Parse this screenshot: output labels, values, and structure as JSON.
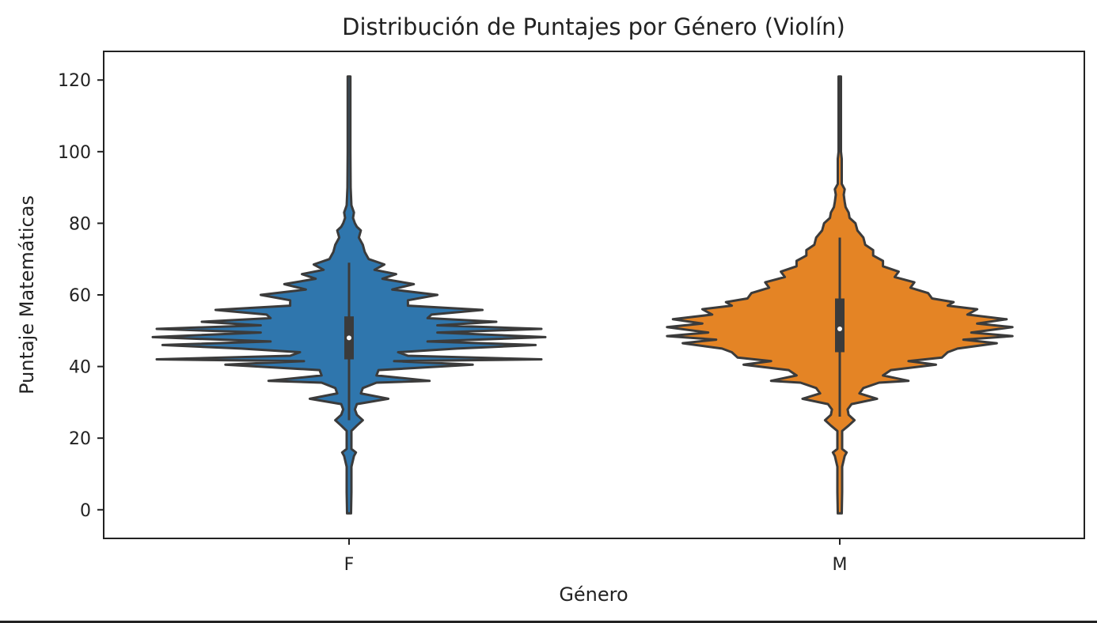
{
  "chart_data": {
    "type": "violin",
    "title": "Distribución de Puntajes por Género (Violín)",
    "xlabel": "Género",
    "ylabel": "Puntaje Matemáticas",
    "categories": [
      "F",
      "M"
    ],
    "ylim": [
      -8,
      128
    ],
    "yticks": [
      0,
      20,
      40,
      60,
      80,
      100,
      120
    ],
    "grid": false,
    "legend": "none",
    "colors": {
      "F": "#2f76ad",
      "M": "#e48425",
      "outline": "#3b3b3b",
      "median": "#ffffff"
    },
    "series": [
      {
        "category": "F",
        "range": [
          -1,
          121
        ],
        "quartiles": [
          42,
          48,
          54
        ],
        "median": 48,
        "whiskers": [
          25,
          69
        ],
        "density": [
          [
            -1,
            0.01
          ],
          [
            5,
            0.012
          ],
          [
            12,
            0.012
          ],
          [
            15,
            0.025
          ],
          [
            16,
            0.035
          ],
          [
            17,
            0.012
          ],
          [
            22,
            0.012
          ],
          [
            23.5,
            0.04
          ],
          [
            25,
            0.07
          ],
          [
            26.5,
            0.04
          ],
          [
            28,
            0.03
          ],
          [
            29.5,
            0.04
          ],
          [
            31,
            0.2
          ],
          [
            32.5,
            0.06
          ],
          [
            34,
            0.07
          ],
          [
            35.5,
            0.14
          ],
          [
            36,
            0.41
          ],
          [
            37.5,
            0.14
          ],
          [
            39,
            0.15
          ],
          [
            40.5,
            0.63
          ],
          [
            41.5,
            0.23
          ],
          [
            42,
            0.98
          ],
          [
            43,
            0.3
          ],
          [
            44,
            0.25
          ],
          [
            45,
            0.55
          ],
          [
            46,
            0.95
          ],
          [
            47,
            0.4
          ],
          [
            48.2,
            1.0
          ],
          [
            49.5,
            0.45
          ],
          [
            50.5,
            0.98
          ],
          [
            51.5,
            0.45
          ],
          [
            52.5,
            0.75
          ],
          [
            53.5,
            0.4
          ],
          [
            54.5,
            0.42
          ],
          [
            55.8,
            0.68
          ],
          [
            57,
            0.3
          ],
          [
            58.5,
            0.3
          ],
          [
            60,
            0.45
          ],
          [
            61.5,
            0.22
          ],
          [
            63,
            0.33
          ],
          [
            64.5,
            0.17
          ],
          [
            65.8,
            0.24
          ],
          [
            67,
            0.13
          ],
          [
            68.5,
            0.18
          ],
          [
            70,
            0.1
          ],
          [
            72,
            0.08
          ],
          [
            74,
            0.07
          ],
          [
            76,
            0.05
          ],
          [
            78,
            0.06
          ],
          [
            79,
            0.04
          ],
          [
            80,
            0.03
          ],
          [
            81.5,
            0.02
          ],
          [
            83,
            0.025
          ],
          [
            85,
            0.012
          ],
          [
            90,
            0.008
          ],
          [
            100,
            0.007
          ],
          [
            121,
            0.007
          ]
        ]
      },
      {
        "category": "M",
        "range": [
          -1,
          121
        ],
        "quartiles": [
          44,
          50.5,
          59
        ],
        "median": 50.5,
        "whiskers": [
          26,
          76
        ],
        "density": [
          [
            -1,
            0.01
          ],
          [
            5,
            0.012
          ],
          [
            12,
            0.012
          ],
          [
            15,
            0.025
          ],
          [
            16,
            0.035
          ],
          [
            17,
            0.012
          ],
          [
            22,
            0.012
          ],
          [
            23.5,
            0.045
          ],
          [
            25,
            0.075
          ],
          [
            26.5,
            0.045
          ],
          [
            28,
            0.04
          ],
          [
            29.5,
            0.06
          ],
          [
            31,
            0.19
          ],
          [
            32.5,
            0.1
          ],
          [
            34,
            0.12
          ],
          [
            35.5,
            0.2
          ],
          [
            36,
            0.35
          ],
          [
            37.5,
            0.22
          ],
          [
            39,
            0.26
          ],
          [
            40.5,
            0.49
          ],
          [
            41.5,
            0.35
          ],
          [
            42.5,
            0.52
          ],
          [
            44,
            0.55
          ],
          [
            45,
            0.6
          ],
          [
            46.5,
            0.8
          ],
          [
            47.5,
            0.63
          ],
          [
            48.5,
            0.88
          ],
          [
            49.5,
            0.67
          ],
          [
            51,
            0.88
          ],
          [
            52,
            0.7
          ],
          [
            53.2,
            0.85
          ],
          [
            54.5,
            0.65
          ],
          [
            56,
            0.7
          ],
          [
            57,
            0.55
          ],
          [
            58,
            0.58
          ],
          [
            59,
            0.47
          ],
          [
            60.5,
            0.45
          ],
          [
            62,
            0.36
          ],
          [
            63.5,
            0.38
          ],
          [
            65,
            0.28
          ],
          [
            66.5,
            0.3
          ],
          [
            68,
            0.22
          ],
          [
            69.5,
            0.22
          ],
          [
            71,
            0.17
          ],
          [
            72.5,
            0.17
          ],
          [
            74,
            0.13
          ],
          [
            76,
            0.12
          ],
          [
            78,
            0.09
          ],
          [
            80,
            0.08
          ],
          [
            81.5,
            0.05
          ],
          [
            83,
            0.045
          ],
          [
            84.5,
            0.03
          ],
          [
            86,
            0.025
          ],
          [
            88,
            0.02
          ],
          [
            89.5,
            0.025
          ],
          [
            91,
            0.01
          ],
          [
            98,
            0.01
          ],
          [
            100,
            0.006
          ],
          [
            121,
            0.006
          ]
        ]
      }
    ]
  }
}
